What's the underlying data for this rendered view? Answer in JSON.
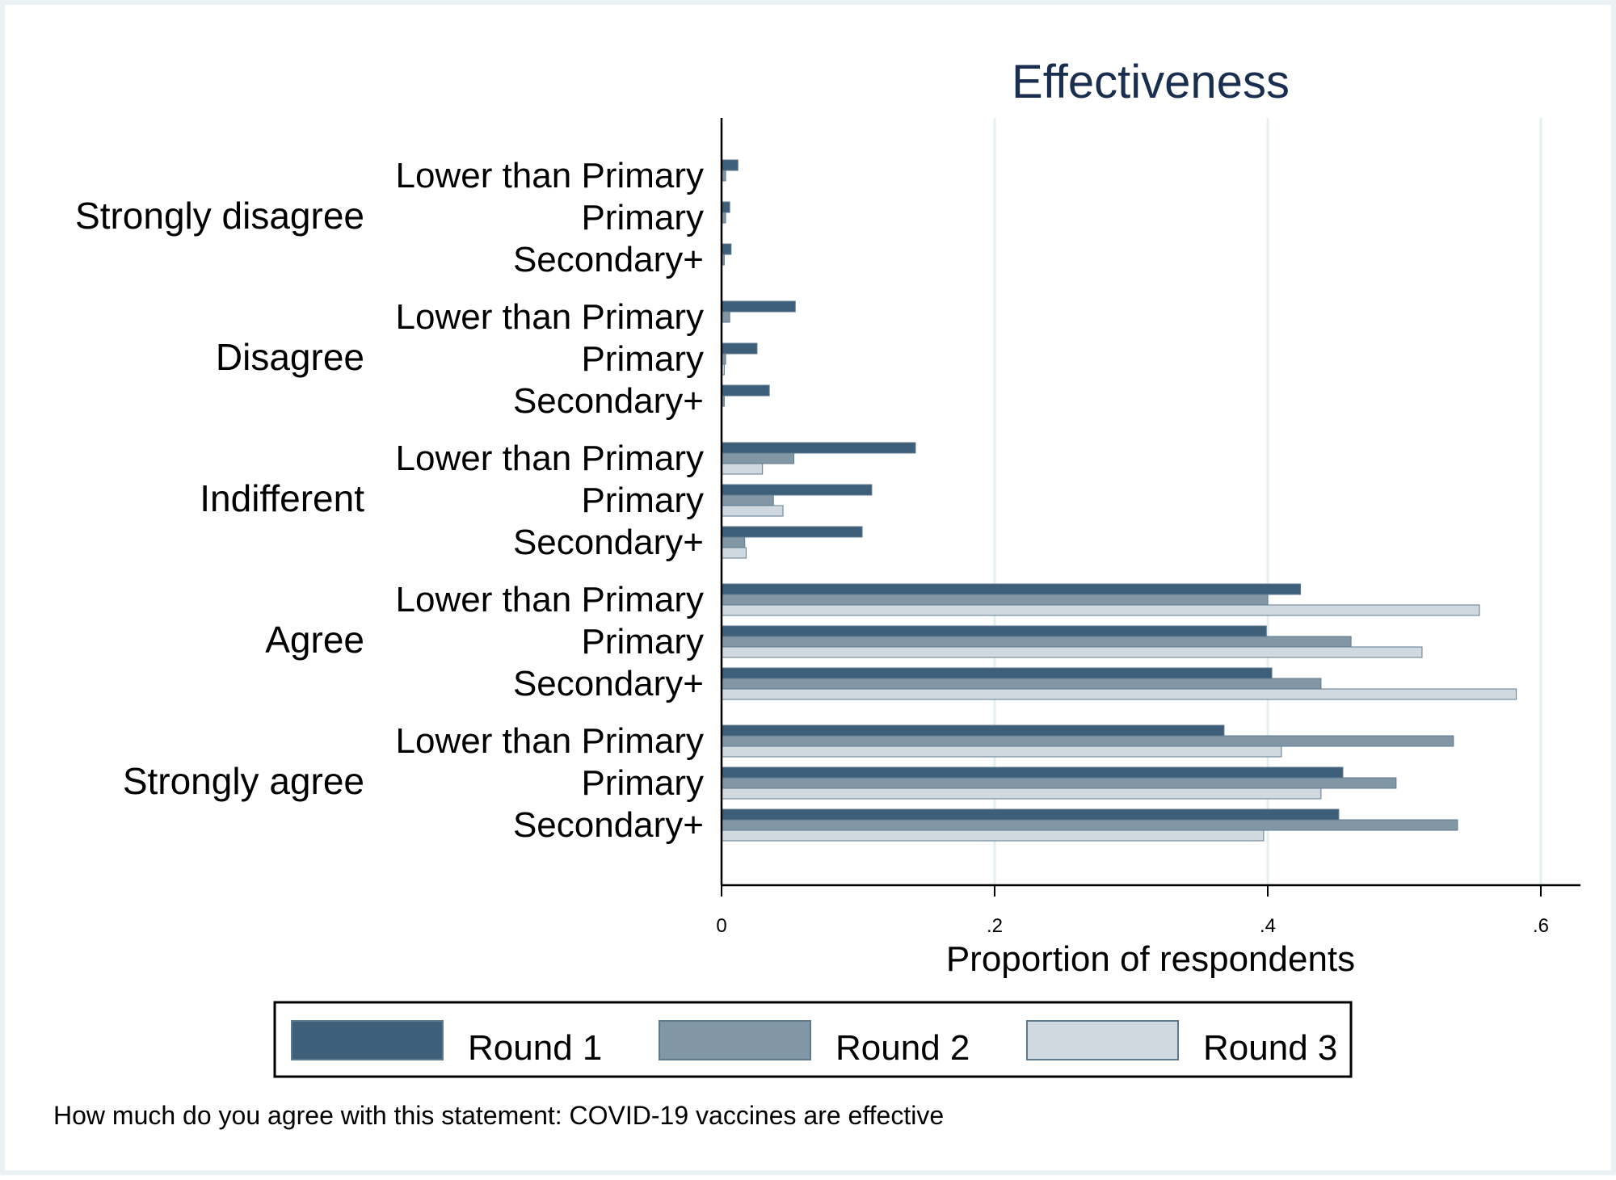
{
  "chart_data": {
    "type": "bar",
    "orientation": "horizontal",
    "title": "Effectiveness",
    "xlabel": "Proportion of respondents",
    "note": "How much do you agree with this statement: COVID-19 vaccines are effective",
    "xlim": [
      0,
      0.63
    ],
    "xticks": [
      0,
      0.2,
      0.4,
      0.6
    ],
    "xtick_labels": [
      "0",
      ".2",
      ".4",
      ".6"
    ],
    "grid": "vertical",
    "legend_position": "bottom",
    "subgroups": [
      "Lower than Primary",
      "Primary",
      "Secondary+"
    ],
    "groups": [
      {
        "name": "Strongly disagree",
        "rows": [
          {
            "label": "Lower than Primary",
            "values": [
              0.012,
              0.003,
              0.0
            ]
          },
          {
            "label": "Primary",
            "values": [
              0.006,
              0.003,
              0.0
            ]
          },
          {
            "label": "Secondary+",
            "values": [
              0.007,
              0.002,
              0.0
            ]
          }
        ]
      },
      {
        "name": "Disagree",
        "rows": [
          {
            "label": "Lower than Primary",
            "values": [
              0.054,
              0.006,
              0.0
            ]
          },
          {
            "label": "Primary",
            "values": [
              0.026,
              0.003,
              0.002
            ]
          },
          {
            "label": "Secondary+",
            "values": [
              0.035,
              0.002,
              0.0
            ]
          }
        ]
      },
      {
        "name": "Indifferent",
        "rows": [
          {
            "label": "Lower than Primary",
            "values": [
              0.142,
              0.053,
              0.03
            ]
          },
          {
            "label": "Primary",
            "values": [
              0.11,
              0.038,
              0.045
            ]
          },
          {
            "label": "Secondary+",
            "values": [
              0.103,
              0.017,
              0.018
            ]
          }
        ]
      },
      {
        "name": "Agree",
        "rows": [
          {
            "label": "Lower than Primary",
            "values": [
              0.424,
              0.4,
              0.555
            ]
          },
          {
            "label": "Primary",
            "values": [
              0.399,
              0.461,
              0.513
            ]
          },
          {
            "label": "Secondary+",
            "values": [
              0.403,
              0.439,
              0.582
            ]
          }
        ]
      },
      {
        "name": "Strongly agree",
        "rows": [
          {
            "label": "Lower than Primary",
            "values": [
              0.368,
              0.536,
              0.41
            ]
          },
          {
            "label": "Primary",
            "values": [
              0.455,
              0.494,
              0.439
            ]
          },
          {
            "label": "Secondary+",
            "values": [
              0.452,
              0.539,
              0.397
            ]
          }
        ]
      }
    ],
    "series": [
      {
        "name": "Round 1",
        "color": "#3e5f79"
      },
      {
        "name": "Round 2",
        "color": "#8197a6"
      },
      {
        "name": "Round 3",
        "color": "#d1d9e0"
      }
    ]
  }
}
